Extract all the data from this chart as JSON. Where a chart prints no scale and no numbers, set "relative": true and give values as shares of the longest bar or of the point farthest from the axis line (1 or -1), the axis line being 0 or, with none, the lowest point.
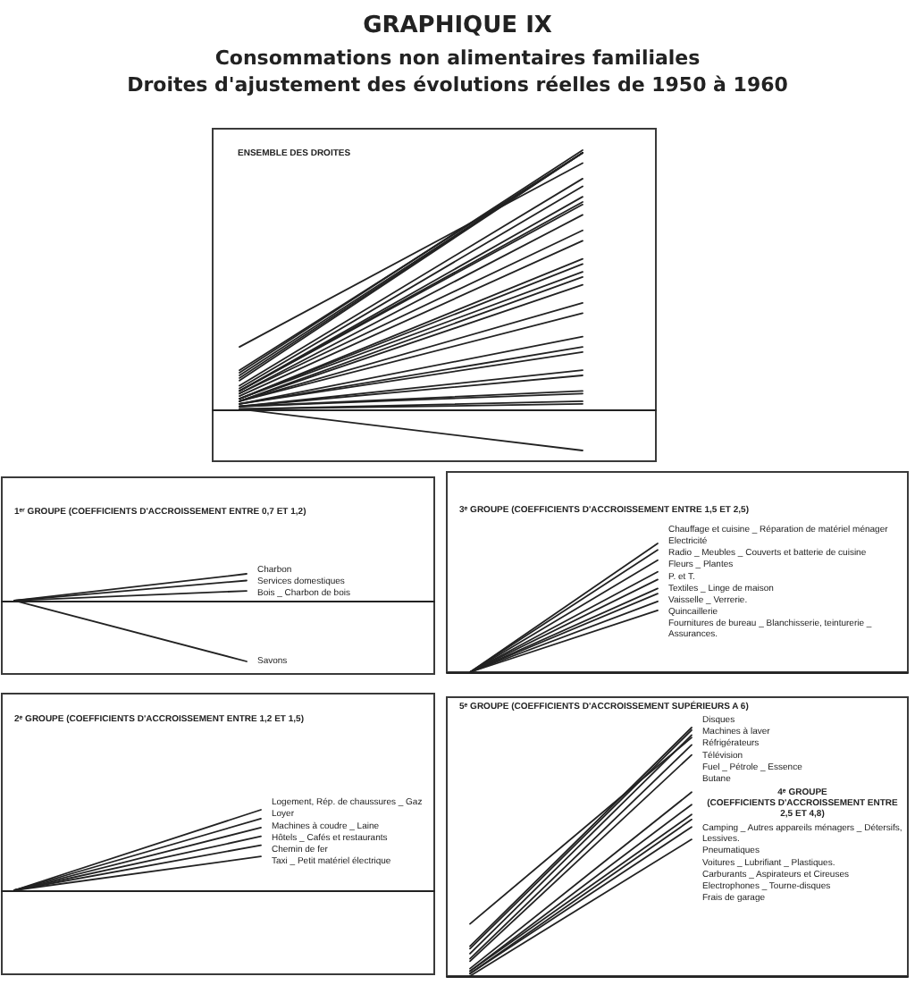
{
  "chart_data": [
    {
      "type": "line",
      "title": "GRAPHIQUE IX",
      "subtitle": "Consommations non alimentaires familiales\nDroites d'ajustement des évolutions réelles de 1950 à 1960",
      "annotations": [
        "ENSEMBLE DES DROITES"
      ],
      "categories": [
        null,
        null
      ],
      "relative": true,
      "color": "#222222",
      "marker": "none",
      "series": [
        {
          "values": [
            0.24,
            0.95
          ]
        },
        {
          "values": [
            0.15,
            0.99
          ]
        },
        {
          "values": [
            0.14,
            1
          ]
        },
        {
          "values": [
            0.13,
            0.99
          ]
        },
        {
          "values": [
            0.12,
            0.99
          ]
        },
        {
          "values": [
            0.11,
            0.99
          ]
        },
        {
          "values": [
            0.09,
            0.89
          ]
        },
        {
          "values": [
            0.08,
            0.86
          ]
        },
        {
          "values": [
            0.07,
            0.82
          ]
        },
        {
          "values": [
            0.07,
            0.8
          ]
        },
        {
          "values": [
            0.07,
            0.79
          ]
        },
        {
          "values": [
            0.06,
            0.75
          ]
        },
        {
          "values": [
            0.06,
            0.69
          ]
        },
        {
          "values": [
            0.05,
            0.65
          ]
        },
        {
          "values": [
            0.04,
            0.58
          ]
        },
        {
          "values": [
            0.04,
            0.56
          ]
        },
        {
          "values": [
            0.04,
            0.53
          ]
        },
        {
          "values": [
            0.03,
            0.51
          ]
        },
        {
          "values": [
            0.03,
            0.48
          ]
        },
        {
          "values": [
            0.03,
            0.41
          ]
        },
        {
          "values": [
            0.03,
            0.37
          ]
        },
        {
          "values": [
            0.02,
            0.28
          ]
        },
        {
          "values": [
            0.02,
            0.24
          ]
        },
        {
          "values": [
            0.02,
            0.22
          ]
        },
        {
          "values": [
            0.01,
            0.15
          ]
        },
        {
          "values": [
            0.01,
            0.13
          ]
        },
        {
          "values": [
            0.01,
            0.07
          ]
        },
        {
          "values": [
            0.01,
            0.06
          ]
        },
        {
          "values": [
            0,
            0.03
          ]
        },
        {
          "values": [
            0,
            0.02
          ]
        },
        {
          "values": [
            0,
            -0.16
          ]
        }
      ]
    },
    {
      "type": "line",
      "title": "1ᵉʳ GROUPE (COEFFICIENTS D'ACCROISSEMENT ENTRE 0,7 ET 1,2)",
      "categories": [
        null,
        null
      ],
      "relative": true,
      "color": "#222222",
      "marker": "none",
      "series": [
        {
          "name": "Charbon",
          "values": [
            0,
            0.44
          ]
        },
        {
          "name": "Services domestiques",
          "values": [
            0,
            0.33
          ]
        },
        {
          "name": "Bois _ Charbon de bois",
          "values": [
            0,
            0.16
          ]
        },
        {
          "name": "Savons",
          "values": [
            0,
            -1
          ]
        }
      ]
    },
    {
      "type": "line",
      "title": "3ᵉ GROUPE (COEFFICIENTS D'ACCROISSEMENT ENTRE 1,5 ET 2,5)",
      "categories": [
        null,
        null
      ],
      "relative": true,
      "color": "#222222",
      "marker": "none",
      "series": [
        {
          "name": "Chauffage et cuisine _ Réparation de matériel ménager",
          "values": [
            0,
            1
          ]
        },
        {
          "name": "Electricité",
          "values": [
            0,
            0.95
          ]
        },
        {
          "name": "Radio _ Meubles _ Couverts et batterie de cuisine",
          "values": [
            0,
            0.87
          ]
        },
        {
          "name": "Fleurs _ Plantes",
          "values": [
            0,
            0.78
          ]
        },
        {
          "name": "P. et T.",
          "values": [
            0,
            0.72
          ]
        },
        {
          "name": "Textiles _ Linge de maison",
          "values": [
            0,
            0.65
          ]
        },
        {
          "name": "Vaisselle _ Verrerie.",
          "values": [
            0,
            0.61
          ]
        },
        {
          "name": "Quincaillerie",
          "values": [
            0,
            0.55
          ]
        },
        {
          "name": "Fournitures de bureau _ Blanchisserie, teinturerie _ Assurances.",
          "values": [
            0,
            0.48
          ]
        }
      ]
    },
    {
      "type": "line",
      "title": "2ᵉ GROUPE (COEFFICIENTS D'ACCROISSEMENT ENTRE 1,2 ET 1,5)",
      "categories": [
        null,
        null
      ],
      "relative": true,
      "color": "#222222",
      "marker": "none",
      "series": [
        {
          "name": "Logement, Rép. de chaussures _ Gaz",
          "values": [
            0,
            1
          ]
        },
        {
          "name": "Loyer",
          "values": [
            0,
            0.89
          ]
        },
        {
          "name": "Machines à coudre _ Laine",
          "values": [
            0,
            0.78
          ]
        },
        {
          "name": "Hôtels _ Cafés et restaurants",
          "values": [
            0,
            0.67
          ]
        },
        {
          "name": "Chemin de fer",
          "values": [
            0,
            0.56
          ]
        },
        {
          "name": "Taxi _ Petit matériel électrique",
          "values": [
            0,
            0.42
          ]
        }
      ]
    },
    {
      "type": "line",
      "title": "5ᵉ GROUPE (COEFFICIENTS D'ACCROISSEMENT SUPÉRIEURS A 6)",
      "annotations": [
        "4ᵉ GROUPE",
        "(COEFFICIENTS D'ACCROISSEMENT ENTRE 2,5 ET 4,8)"
      ],
      "categories": [
        null,
        null
      ],
      "relative": true,
      "color": "#222222",
      "marker": "none",
      "series": [
        {
          "name": "Télévision",
          "values": [
            0.21,
            0.96
          ]
        },
        {
          "name": "Disques",
          "values": [
            0.12,
            1
          ]
        },
        {
          "name": "Machines à laver",
          "values": [
            0.11,
            0.99
          ]
        },
        {
          "name": "Réfrigérateurs",
          "values": [
            0.09,
            0.97
          ]
        },
        {
          "name": "Fuel _ Pétrole _ Essence",
          "values": [
            0.07,
            0.93
          ]
        },
        {
          "name": "Butane",
          "values": [
            0.06,
            0.89
          ]
        },
        {
          "name": "Camping _ Autres appareils ménagers _ Détersifs, Lessives.",
          "values": [
            0.03,
            0.74
          ]
        },
        {
          "name": "Pneumatiques",
          "values": [
            0.02,
            0.69
          ]
        },
        {
          "name": "Voitures _ Lubrifiant _ Plastiques.",
          "values": [
            0.02,
            0.65
          ]
        },
        {
          "name": "Carburants _ Aspirateurs et Cireuses",
          "values": [
            0.01,
            0.63
          ]
        },
        {
          "name": "Electrophones _ Tourne-disques",
          "values": [
            0.01,
            0.6
          ]
        },
        {
          "name": "Frais de garage",
          "values": [
            0,
            0.55
          ]
        }
      ]
    }
  ]
}
